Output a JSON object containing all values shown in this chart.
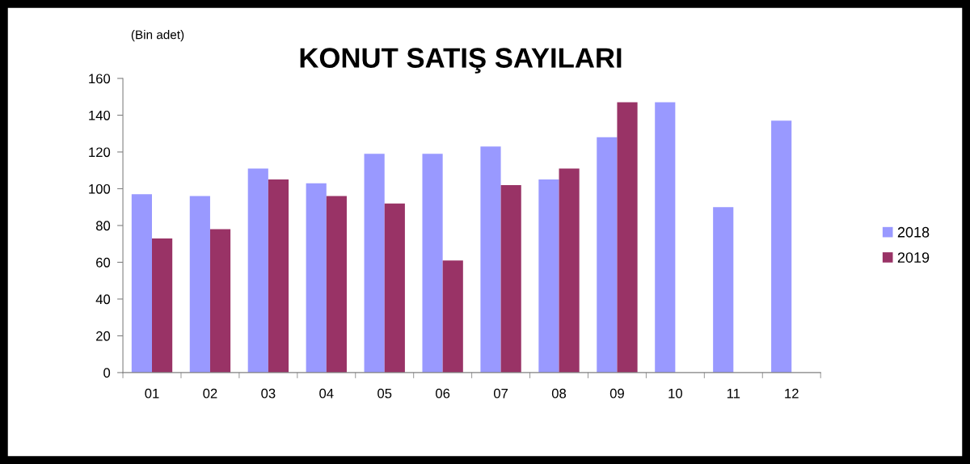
{
  "chart_data": {
    "type": "bar",
    "title": "KONUT SATIŞ SAYILARI",
    "ylabel": "(Bin adet)",
    "categories": [
      "01",
      "02",
      "03",
      "04",
      "05",
      "06",
      "07",
      "08",
      "09",
      "10",
      "11",
      "12"
    ],
    "series": [
      {
        "name": "2018",
        "color": "#9999ff",
        "values": [
          97,
          96,
          111,
          103,
          119,
          119,
          123,
          105,
          128,
          147,
          90,
          137
        ]
      },
      {
        "name": "2019",
        "color": "#993366",
        "values": [
          73,
          78,
          105,
          96,
          92,
          61,
          102,
          111,
          147,
          null,
          null,
          null
        ]
      }
    ],
    "ylim": [
      0,
      160
    ],
    "yticks": [
      0,
      20,
      40,
      60,
      80,
      100,
      120,
      140,
      160
    ],
    "grid": false,
    "legend": "right"
  }
}
